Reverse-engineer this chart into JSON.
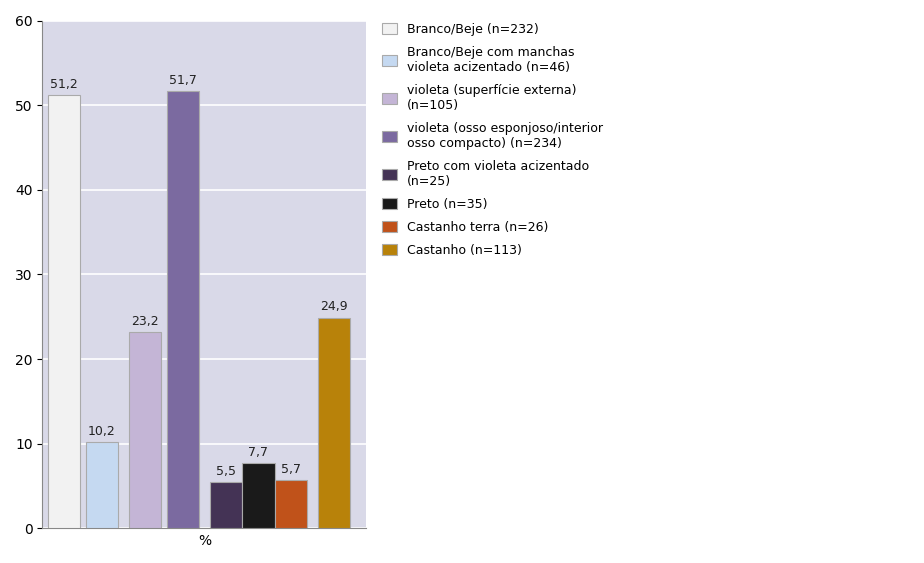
{
  "values": [
    51.2,
    10.2,
    23.2,
    51.7,
    5.5,
    7.7,
    5.7,
    24.9
  ],
  "bar_colors": [
    "#f2f2f2",
    "#c5d9f1",
    "#c4b5d6",
    "#7b6aa0",
    "#443355",
    "#1a1a1a",
    "#c0521a",
    "#b8820a"
  ],
  "bar_edge_colors": [
    "#aaaaaa",
    "#aaaaaa",
    "#aaaaaa",
    "#aaaaaa",
    "#aaaaaa",
    "#aaaaaa",
    "#aaaaaa",
    "#aaaaaa"
  ],
  "legend_labels": [
    "Branco/Beje (n=232)",
    "Branco/Beje com manchas\nvioleta acizentado (n=46)",
    "violeta (superfície externa)\n(n=105)",
    "violeta (osso esponjoso/interior\nosso compacto) (n=234)",
    "Preto com violeta acizentado\n(n=25)",
    "Preto (n=35)",
    "Castanho terra (n=26)",
    "Castanho (n=113)"
  ],
  "xlabel": "%",
  "ylabel": "",
  "ylim": [
    0,
    60
  ],
  "yticks": [
    0,
    10,
    20,
    30,
    40,
    50,
    60
  ],
  "background_color": "#d9d9e8",
  "plot_bg_color": "#d9d9e8",
  "legend_bg_color": "#ffffff",
  "grid_color": "#ffffff",
  "value_labels": [
    "51,2",
    "10,2",
    "23,2",
    "51,7",
    "5,5",
    "7,7",
    "5,7",
    "24,9"
  ],
  "bar_positions": [
    0.7,
    1.4,
    2.2,
    2.9,
    3.7,
    4.3,
    4.9,
    5.7
  ],
  "bar_width": 0.6,
  "xlim": [
    0.3,
    6.3
  ]
}
